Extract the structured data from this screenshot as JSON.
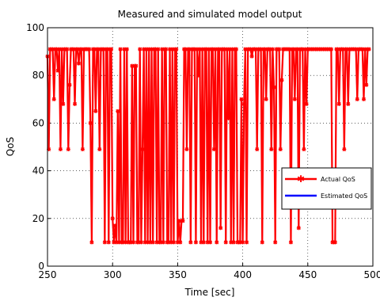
{
  "figure": {
    "title": "Measured and simulated model output",
    "xlabel": "Time [sec]",
    "ylabel": "QoS"
  },
  "chart_data": {
    "type": "line",
    "title": "Measured and simulated model output",
    "xlabel": "Time [sec]",
    "ylabel": "QoS",
    "xlim": [
      250,
      500
    ],
    "ylim": [
      0,
      100
    ],
    "xticks": [
      "250",
      "300",
      "350",
      "400",
      "450",
      "500"
    ],
    "yticks": [
      "0",
      "20",
      "40",
      "60",
      "80",
      "100"
    ],
    "grid": true,
    "grid_style": "dotted",
    "legend_position": "right",
    "x_start": 250,
    "x_step": 1,
    "series": [
      {
        "name": "Actual QoS",
        "color": "#ff0000",
        "marker": "star",
        "values": [
          88,
          49,
          91,
          91,
          91,
          70,
          91,
          91,
          82,
          91,
          49,
          91,
          68,
          91,
          91,
          91,
          49,
          76,
          91,
          91,
          91,
          68,
          91,
          91,
          85,
          91,
          91,
          49,
          91,
          91,
          91,
          91,
          91,
          60,
          10,
          91,
          91,
          65,
          91,
          91,
          49,
          91,
          91,
          91,
          10,
          91,
          91,
          10,
          91,
          91,
          20,
          10,
          17,
          10,
          65,
          10,
          91,
          10,
          10,
          91,
          10,
          91,
          10,
          10,
          10,
          84,
          10,
          84,
          84,
          10,
          10,
          91,
          10,
          49,
          91,
          10,
          91,
          10,
          91,
          10,
          91,
          10,
          91,
          91,
          10,
          91,
          10,
          10,
          91,
          10,
          91,
          91,
          10,
          10,
          91,
          10,
          91,
          10,
          91,
          91,
          10,
          19,
          10,
          19,
          19,
          91,
          91,
          49,
          91,
          91,
          10,
          91,
          91,
          91,
          10,
          91,
          80,
          91,
          10,
          91,
          10,
          91,
          91,
          10,
          91,
          10,
          91,
          91,
          49,
          91,
          10,
          91,
          91,
          16,
          91,
          91,
          91,
          10,
          91,
          62,
          91,
          10,
          91,
          10,
          91,
          91,
          10,
          10,
          10,
          70,
          10,
          68,
          91,
          10,
          91,
          91,
          91,
          88,
          91,
          91,
          91,
          49,
          91,
          91,
          91,
          10,
          91,
          91,
          70,
          91,
          91,
          91,
          49,
          91,
          75,
          10,
          91,
          91,
          91,
          49,
          78,
          91,
          91,
          91,
          91,
          91,
          91,
          10,
          91,
          91,
          70,
          91,
          91,
          16,
          91,
          91,
          91,
          49,
          91,
          68,
          91,
          91,
          91,
          91,
          91,
          91,
          91,
          91,
          91,
          91,
          91,
          91,
          91,
          91,
          91,
          91,
          91,
          91,
          91,
          10,
          10,
          10,
          91,
          91,
          68,
          91,
          91,
          91,
          49,
          91,
          91,
          68,
          91,
          91,
          91,
          91,
          91,
          91,
          70,
          91,
          91,
          91,
          91,
          70,
          91,
          76,
          91,
          91
        ]
      },
      {
        "name": "Estimated QoS",
        "color": "#0000ff",
        "marker": "none",
        "values": [
          88,
          49,
          91,
          91,
          91,
          70,
          91,
          91,
          82,
          91,
          49,
          91,
          68,
          91,
          91,
          91,
          49,
          76,
          91,
          91,
          91,
          68,
          91,
          91,
          85,
          91,
          91,
          49,
          91,
          91,
          91,
          91,
          91,
          60,
          10,
          91,
          91,
          65,
          91,
          91,
          49,
          91,
          91,
          91,
          10,
          91,
          91,
          10,
          91,
          91,
          20,
          10,
          17,
          10,
          65,
          10,
          91,
          10,
          10,
          91,
          10,
          91,
          10,
          10,
          10,
          84,
          10,
          84,
          84,
          10,
          10,
          91,
          10,
          49,
          91,
          10,
          91,
          10,
          91,
          10,
          91,
          10,
          91,
          91,
          10,
          91,
          10,
          10,
          91,
          10,
          91,
          91,
          10,
          10,
          91,
          10,
          91,
          10,
          91,
          91,
          10,
          19,
          10,
          19,
          19,
          91,
          91,
          49,
          91,
          91,
          10,
          91,
          91,
          91,
          10,
          91,
          80,
          91,
          10,
          91,
          10,
          91,
          91,
          10,
          91,
          10,
          91,
          91,
          49,
          91,
          10,
          91,
          91,
          16,
          91,
          91,
          91,
          10,
          91,
          62,
          91,
          10,
          91,
          10,
          91,
          91,
          10,
          10,
          10,
          70,
          10,
          68,
          91,
          10,
          91,
          91,
          91,
          88,
          91,
          91,
          91,
          49,
          91,
          91,
          91,
          10,
          91,
          91,
          70,
          91,
          91,
          91,
          49,
          91,
          75,
          10,
          91,
          91,
          91,
          49,
          78,
          91,
          91,
          91,
          91,
          91,
          91,
          10,
          91,
          91,
          70,
          91,
          91,
          16,
          91,
          91,
          91,
          49,
          91,
          68,
          91,
          91,
          91,
          91,
          91,
          91,
          91,
          91,
          91,
          91,
          91,
          91,
          91,
          91,
          91,
          91,
          91,
          91,
          91,
          10,
          10,
          10,
          91,
          91,
          68,
          91,
          91,
          91,
          49,
          91,
          91,
          68,
          91,
          91,
          91,
          91,
          91,
          91,
          70,
          91,
          91,
          91,
          91,
          70,
          91,
          76,
          91,
          91
        ]
      }
    ]
  }
}
